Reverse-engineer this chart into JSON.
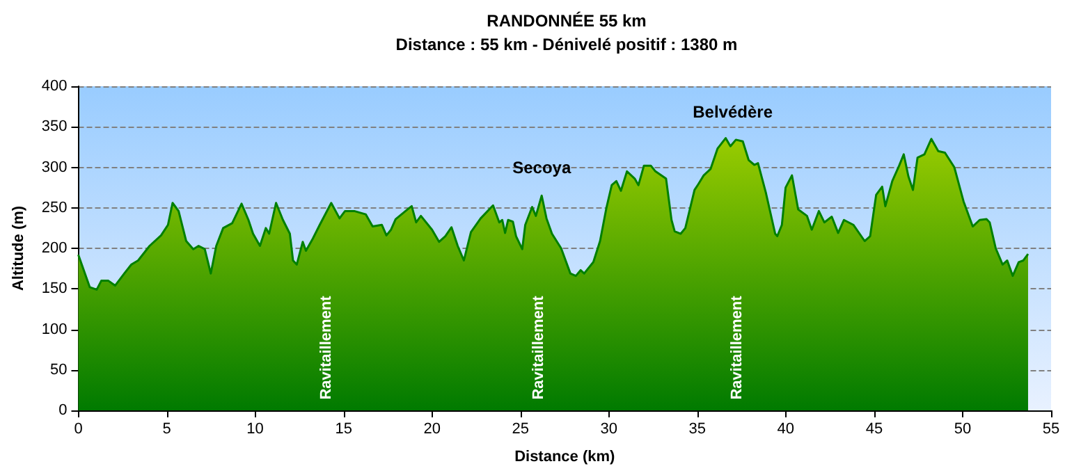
{
  "chart_data": {
    "type": "area",
    "title": "RANDONNÉE 55 km",
    "subtitle": "Distance : 55 km - Dénivelé positif : 1380 m",
    "xlabel": "Distance (km)",
    "ylabel": "Altitude (m)",
    "x": [
      0,
      0.65,
      1.04,
      1.3,
      1.7,
      2.08,
      2.6,
      3.0,
      3.38,
      4.03,
      4.68,
      5.07,
      5.33,
      5.67,
      6.1,
      6.5,
      6.8,
      7.15,
      7.49,
      7.8,
      8.19,
      8.7,
      9.23,
      9.62,
      9.88,
      10.27,
      10.6,
      10.79,
      11.18,
      11.57,
      11.96,
      12.14,
      12.35,
      12.69,
      12.87,
      13.26,
      13.65,
      14.3,
      14.77,
      15.08,
      15.6,
      16.25,
      16.64,
      17.16,
      17.42,
      17.68,
      17.94,
      18.67,
      18.85,
      19.1,
      19.37,
      20.0,
      20.4,
      20.75,
      21.1,
      21.45,
      21.8,
      22.2,
      22.75,
      23.45,
      23.8,
      23.97,
      24.13,
      24.3,
      24.57,
      24.75,
      25.1,
      25.27,
      25.66,
      25.87,
      26.2,
      26.47,
      26.78,
      27.3,
      27.82,
      28.13,
      28.4,
      28.6,
      29.12,
      29.5,
      29.85,
      30.16,
      30.42,
      30.68,
      31.02,
      31.46,
      31.67,
      31.98,
      32.37,
      32.63,
      33.23,
      33.54,
      33.72,
      34.06,
      34.32,
      34.84,
      35.05,
      35.36,
      35.75,
      36.14,
      36.6,
      36.87,
      37.18,
      37.57,
      37.9,
      38.22,
      38.43,
      38.87,
      39.4,
      39.52,
      39.78,
      39.99,
      40.35,
      40.7,
      41.2,
      41.47,
      41.87,
      42.18,
      42.6,
      42.96,
      43.29,
      43.82,
      44.46,
      44.77,
      45.11,
      45.45,
      45.63,
      46.02,
      46.41,
      46.67,
      46.93,
      47.19,
      47.45,
      47.84,
      48.23,
      48.62,
      49.0,
      49.53,
      50.05,
      50.57,
      50.96,
      51.35,
      51.53,
      51.87,
      52.26,
      52.52,
      52.83,
      53.17,
      53.43,
      53.7
    ],
    "series": [
      {
        "color": "#008000",
        "values": [
          192,
          152,
          149,
          160,
          160,
          154,
          169,
          180,
          185,
          203,
          216,
          229,
          256,
          246,
          209,
          199,
          203,
          199,
          169,
          203,
          225,
          231,
          255,
          235,
          218,
          203,
          225,
          218,
          256,
          235,
          218,
          185,
          180,
          208,
          197,
          212,
          229,
          256,
          237,
          246,
          246,
          242,
          227,
          229,
          216,
          223,
          236,
          249,
          252,
          232,
          240,
          223,
          208,
          215,
          226,
          203,
          185,
          220,
          237,
          253,
          232,
          235,
          219,
          235,
          233,
          215,
          199,
          229,
          251,
          240,
          265,
          237,
          218,
          200,
          169,
          166,
          173,
          169,
          183,
          209,
          249,
          278,
          283,
          271,
          295,
          286,
          278,
          302,
          302,
          295,
          286,
          235,
          221,
          218,
          225,
          272,
          279,
          290,
          298,
          323,
          336,
          326,
          334,
          332,
          309,
          303,
          305,
          269,
          218,
          215,
          229,
          275,
          290,
          248,
          240,
          223,
          246,
          232,
          239,
          219,
          235,
          229,
          209,
          215,
          266,
          276,
          252,
          283,
          302,
          316,
          289,
          272,
          312,
          316,
          335,
          320,
          318,
          300,
          258,
          227,
          235,
          236,
          232,
          200,
          180,
          185,
          166,
          183,
          185,
          193
        ]
      }
    ],
    "xlim": [
      0,
      55
    ],
    "xticks": [
      0,
      5,
      10,
      15,
      20,
      25,
      30,
      35,
      40,
      45,
      50,
      55
    ],
    "ylim": [
      0,
      400
    ],
    "yticks": [
      0,
      50,
      100,
      150,
      200,
      250,
      300,
      350,
      400
    ],
    "grid": "y",
    "annotations": [
      "Ravitaillement",
      {
        "text": "Secoya",
        "x": 26.2,
        "y": 265
      },
      "Ravitaillement",
      {
        "text": "Belvédère",
        "x": 37,
        "y": 334
      },
      "Ravitaillement"
    ]
  }
}
